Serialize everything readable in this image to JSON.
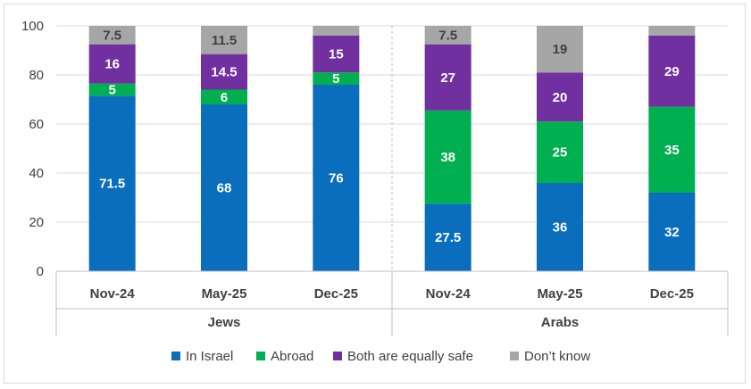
{
  "chart_data": {
    "type": "bar",
    "stacked": true,
    "ylim": [
      0,
      100
    ],
    "yticks": [
      0,
      20,
      40,
      60,
      80,
      100
    ],
    "grid": true,
    "legend_position": "bottom",
    "categories": [
      "Nov-24",
      "May-25",
      "Dec-25",
      "Nov-24",
      "May-25",
      "Dec-25"
    ],
    "groups": [
      {
        "label": "Jews",
        "category_indices": [
          0,
          1,
          2
        ]
      },
      {
        "label": "Arabs",
        "category_indices": [
          3,
          4,
          5
        ]
      }
    ],
    "series": [
      {
        "name": "In Israel",
        "color": "#0a6ebd",
        "label_color": "#ffffff",
        "values": [
          71.5,
          68,
          76,
          27.5,
          36,
          32
        ]
      },
      {
        "name": "Abroad",
        "color": "#00b050",
        "label_color": "#ffffff",
        "values": [
          5,
          6,
          5,
          38,
          25,
          35
        ]
      },
      {
        "name": "Both are equally safe",
        "color": "#7030a0",
        "label_color": "#ffffff",
        "values": [
          16,
          14.5,
          15,
          27,
          20,
          29
        ]
      },
      {
        "name": "Don’t know",
        "color": "#a6a6a6",
        "label_color": "#404040",
        "values": [
          7.5,
          11.5,
          4,
          7.5,
          19,
          4
        ]
      }
    ],
    "data_labels": [
      [
        "71.5",
        "68",
        "76",
        "27.5",
        "36",
        "32"
      ],
      [
        "5",
        "6",
        "5",
        "38",
        "25",
        "35"
      ],
      [
        "16",
        "14.5",
        "15",
        "27",
        "20",
        "29"
      ],
      [
        "7.5",
        "11.5",
        "",
        "7.5",
        "19",
        ""
      ]
    ]
  }
}
